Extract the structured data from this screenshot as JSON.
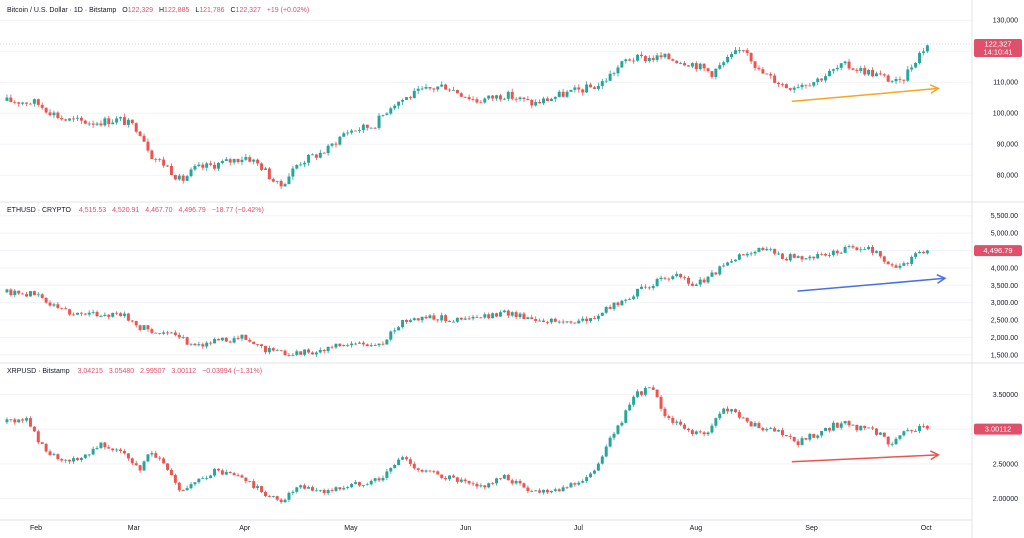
{
  "colors": {
    "up": "#26a69a",
    "down": "#ef5350",
    "grid": "#f0f3fa",
    "separator": "#e0e3eb",
    "axis_text": "#131722",
    "header_text": "#131722",
    "price_label": "#e0506a"
  },
  "x_axis": {
    "months": [
      "Feb",
      "Mar",
      "Apr",
      "May",
      "Jun",
      "Jul",
      "Aug",
      "Sep",
      "Oct"
    ]
  },
  "chart_data": [
    {
      "type": "candlestick",
      "header": {
        "title": "Bitcoin / U.S. Dollar · 1D · Bitstamp",
        "open_label": "O",
        "open": "122,329",
        "high_label": "H",
        "high": "122,885",
        "low_label": "L",
        "low": "121,786",
        "close_label": "C",
        "close": "122,327",
        "change": "+19 (+0.02%)"
      },
      "last_price": "122,327",
      "countdown": "14:10:41",
      "y_ticks": [
        "130,000",
        "120,000",
        "110,000",
        "100,000",
        "90,000",
        "80,000"
      ],
      "ylim": [
        72000,
        132000
      ],
      "trend_arrow": {
        "color": "#f5a623",
        "from": [
          0.837,
          103800
        ],
        "to": [
          0.993,
          108000
        ]
      },
      "anchors": [
        [
          0,
          104000
        ],
        [
          0.03,
          103500
        ],
        [
          0.06,
          98000
        ],
        [
          0.09,
          97000
        ],
        [
          0.12,
          98000
        ],
        [
          0.14,
          95000
        ],
        [
          0.155,
          86000
        ],
        [
          0.17,
          83000
        ],
        [
          0.185,
          78000
        ],
        [
          0.2,
          82000
        ],
        [
          0.23,
          84000
        ],
        [
          0.255,
          86000
        ],
        [
          0.27,
          83000
        ],
        [
          0.29,
          76000
        ],
        [
          0.31,
          84000
        ],
        [
          0.34,
          88000
        ],
        [
          0.36,
          94000
        ],
        [
          0.39,
          96000
        ],
        [
          0.41,
          103000
        ],
        [
          0.44,
          107000
        ],
        [
          0.465,
          109000
        ],
        [
          0.5,
          104000
        ],
        [
          0.53,
          106000
        ],
        [
          0.56,
          103000
        ],
        [
          0.59,
          106000
        ],
        [
          0.63,
          109000
        ],
        [
          0.66,
          117500
        ],
        [
          0.7,
          118000
        ],
        [
          0.73,
          116000
        ],
        [
          0.75,
          113000
        ],
        [
          0.77,
          118000
        ],
        [
          0.785,
          121500
        ],
        [
          0.8,
          113500
        ],
        [
          0.83,
          108500
        ],
        [
          0.86,
          110500
        ],
        [
          0.89,
          115500
        ],
        [
          0.92,
          113000
        ],
        [
          0.95,
          109500
        ],
        [
          0.97,
          119000
        ],
        [
          0.98,
          122327
        ]
      ]
    },
    {
      "type": "candlestick",
      "header": {
        "title": "ETHUSD · CRYPTO",
        "open": "4,515.53",
        "high": "4,520.91",
        "low": "4,467.70",
        "close": "4,496.79",
        "change": "−18.77 (−0.42%)"
      },
      "last_price": "4,496.79",
      "y_ticks": [
        "5,500.00",
        "5,000.00",
        "4,500.00",
        "4,000.00",
        "3,500.00",
        "3,000.00",
        "2,500.00",
        "2,000.00",
        "1,500.00"
      ],
      "ylim": [
        1350,
        5550
      ],
      "trend_arrow": {
        "color": "#4a6fe3",
        "from": [
          0.843,
          3330
        ],
        "to": [
          1.0,
          3700
        ]
      },
      "anchors": [
        [
          0,
          3300
        ],
        [
          0.03,
          3250
        ],
        [
          0.05,
          2900
        ],
        [
          0.07,
          2700
        ],
        [
          0.1,
          2650
        ],
        [
          0.12,
          2700
        ],
        [
          0.14,
          2300
        ],
        [
          0.17,
          2100
        ],
        [
          0.2,
          1800
        ],
        [
          0.23,
          1900
        ],
        [
          0.25,
          2000
        ],
        [
          0.27,
          1700
        ],
        [
          0.29,
          1550
        ],
        [
          0.33,
          1600
        ],
        [
          0.36,
          1800
        ],
        [
          0.4,
          1800
        ],
        [
          0.42,
          2500
        ],
        [
          0.45,
          2600
        ],
        [
          0.48,
          2500
        ],
        [
          0.51,
          2600
        ],
        [
          0.535,
          2700
        ],
        [
          0.56,
          2550
        ],
        [
          0.585,
          2450
        ],
        [
          0.62,
          2500
        ],
        [
          0.65,
          3000
        ],
        [
          0.69,
          3600
        ],
        [
          0.715,
          3750
        ],
        [
          0.73,
          3500
        ],
        [
          0.745,
          3700
        ],
        [
          0.77,
          4200
        ],
        [
          0.795,
          4550
        ],
        [
          0.81,
          4500
        ],
        [
          0.83,
          4300
        ],
        [
          0.87,
          4350
        ],
        [
          0.9,
          4600
        ],
        [
          0.925,
          4500
        ],
        [
          0.94,
          4000
        ],
        [
          0.96,
          4200
        ],
        [
          0.97,
          4500
        ],
        [
          0.98,
          4497
        ]
      ]
    },
    {
      "type": "candlestick",
      "header": {
        "title": "XRPUSD · Bitstamp",
        "open": "3.04215",
        "high": "3.05480",
        "low": "2.99507",
        "close": "3.00112",
        "change": "−0.03994 (−1.31%)"
      },
      "last_price": "3.00112",
      "y_ticks": [
        "3.50000",
        "3.00000",
        "2.50000",
        "2.00000"
      ],
      "ylim": [
        1.72,
        3.78
      ],
      "trend_arrow": {
        "color": "#ef5350",
        "from": [
          0.837,
          2.53
        ],
        "to": [
          0.993,
          2.63
        ]
      },
      "anchors": [
        [
          0,
          3.1
        ],
        [
          0.02,
          3.15
        ],
        [
          0.04,
          2.7
        ],
        [
          0.06,
          2.5
        ],
        [
          0.08,
          2.6
        ],
        [
          0.1,
          2.8
        ],
        [
          0.12,
          2.7
        ],
        [
          0.14,
          2.4
        ],
        [
          0.155,
          2.7
        ],
        [
          0.17,
          2.4
        ],
        [
          0.185,
          2.1
        ],
        [
          0.2,
          2.2
        ],
        [
          0.22,
          2.4
        ],
        [
          0.25,
          2.3
        ],
        [
          0.27,
          2.1
        ],
        [
          0.29,
          1.95
        ],
        [
          0.31,
          2.15
        ],
        [
          0.34,
          2.1
        ],
        [
          0.37,
          2.2
        ],
        [
          0.4,
          2.3
        ],
        [
          0.42,
          2.6
        ],
        [
          0.44,
          2.4
        ],
        [
          0.47,
          2.3
        ],
        [
          0.5,
          2.15
        ],
        [
          0.53,
          2.3
        ],
        [
          0.56,
          2.1
        ],
        [
          0.59,
          2.15
        ],
        [
          0.62,
          2.3
        ],
        [
          0.64,
          2.8
        ],
        [
          0.67,
          3.5
        ],
        [
          0.685,
          3.6
        ],
        [
          0.7,
          3.2
        ],
        [
          0.72,
          3.0
        ],
        [
          0.745,
          2.9
        ],
        [
          0.76,
          3.3
        ],
        [
          0.78,
          3.2
        ],
        [
          0.8,
          3.0
        ],
        [
          0.82,
          2.95
        ],
        [
          0.84,
          2.8
        ],
        [
          0.87,
          3.0
        ],
        [
          0.89,
          3.1
        ],
        [
          0.91,
          3.0
        ],
        [
          0.925,
          2.95
        ],
        [
          0.94,
          2.8
        ],
        [
          0.96,
          3.0
        ],
        [
          0.98,
          3.001
        ]
      ]
    }
  ]
}
